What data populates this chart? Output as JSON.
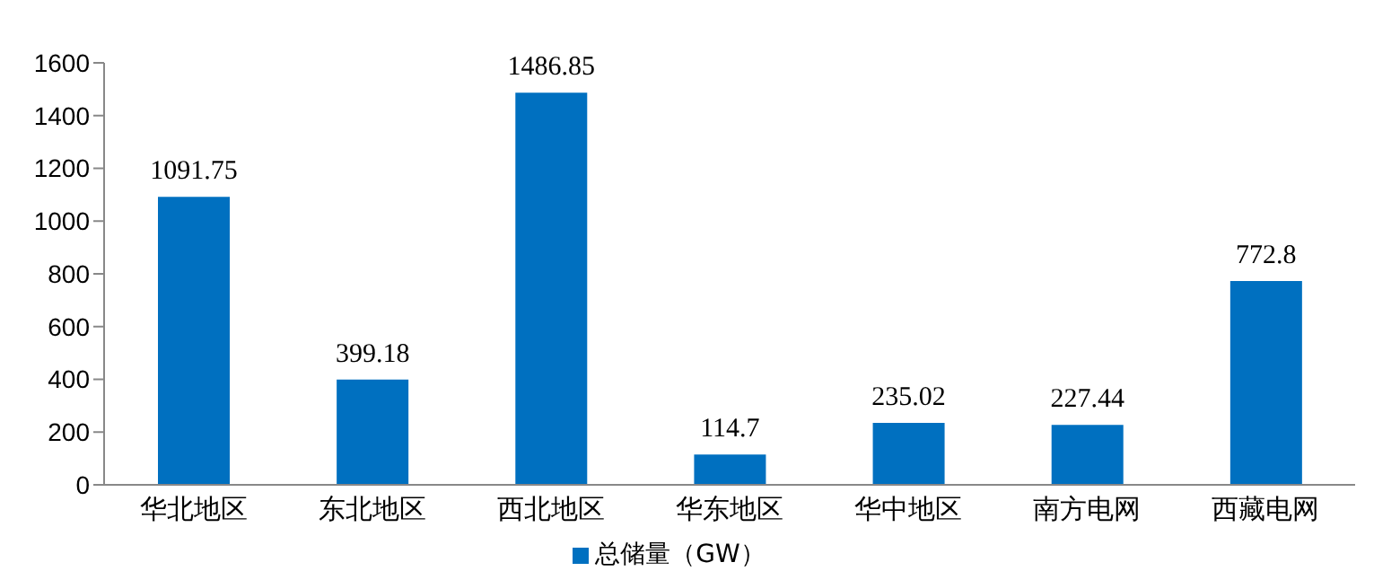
{
  "chart_data": {
    "type": "bar",
    "categories": [
      "华北地区",
      "东北地区",
      "西北地区",
      "华东地区",
      "华中地区",
      "南方电网",
      "西藏电网"
    ],
    "series": [
      {
        "name": "总储量（GW）",
        "color": "#0070c0",
        "values": [
          1091.75,
          399.18,
          1486.85,
          114.7,
          235.02,
          227.44,
          772.8
        ]
      }
    ],
    "ylim": [
      0,
      1600
    ],
    "yticks": [
      0,
      200,
      400,
      600,
      800,
      1000,
      1200,
      1400,
      1600
    ],
    "data_labels": true,
    "legend": "bottom"
  }
}
